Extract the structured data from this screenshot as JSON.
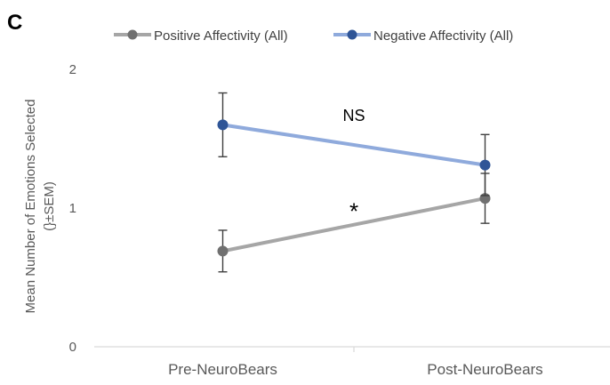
{
  "panel_label": "C",
  "chart_data": {
    "type": "line",
    "title": "",
    "xlabel": "",
    "ylabel": "Mean Number of Emotions Selected",
    "ylabel_line2": "(}±SEM)",
    "categories": [
      "Pre-NeuroBears",
      "Post-NeuroBears"
    ],
    "ylim": [
      0,
      2
    ],
    "yticks": [
      0,
      1,
      2
    ],
    "grid": false,
    "legend_position": "top",
    "series": [
      {
        "name": "Positive Affectivity (All)",
        "color": "#a6a6a6",
        "marker_color": "#707070",
        "values": [
          0.69,
          1.07
        ],
        "error": [
          0.15,
          0.18
        ]
      },
      {
        "name": "Negative Affectivity (All)",
        "color": "#8faadc",
        "marker_color": "#2f5597",
        "values": [
          1.6,
          1.31
        ],
        "error": [
          0.23,
          0.22
        ]
      }
    ],
    "annotations": [
      {
        "text": "NS",
        "series": 1
      },
      {
        "text": "*",
        "series": 0
      }
    ]
  }
}
